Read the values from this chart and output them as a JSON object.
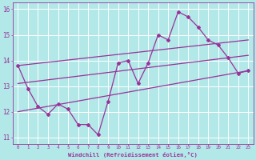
{
  "xlabel": "Windchill (Refroidissement éolien,°C)",
  "bg_color": "#b2e8e8",
  "grid_color": "#ffffff",
  "line_color": "#993399",
  "x_values": [
    0,
    1,
    2,
    3,
    4,
    5,
    6,
    7,
    8,
    9,
    10,
    11,
    12,
    13,
    14,
    15,
    16,
    17,
    18,
    19,
    20,
    21,
    22,
    23
  ],
  "main_y": [
    13.8,
    12.9,
    12.2,
    11.9,
    12.3,
    12.1,
    11.5,
    11.5,
    11.1,
    12.4,
    13.9,
    14.0,
    13.1,
    13.9,
    15.0,
    14.8,
    15.9,
    15.7,
    15.3,
    14.8,
    14.6,
    14.1,
    13.5,
    13.6
  ],
  "upper_line_x": [
    0,
    23
  ],
  "upper_line_y": [
    13.8,
    14.8
  ],
  "lower_line_x": [
    0,
    23
  ],
  "lower_line_y": [
    12.0,
    13.6
  ],
  "mid_line_x": [
    0,
    23
  ],
  "mid_line_y": [
    13.1,
    14.2
  ],
  "xlim": [
    -0.5,
    23.5
  ],
  "ylim": [
    10.75,
    16.25
  ],
  "yticks": [
    11,
    12,
    13,
    14,
    15,
    16
  ],
  "xticks": [
    0,
    1,
    2,
    3,
    4,
    5,
    6,
    7,
    8,
    9,
    10,
    11,
    12,
    13,
    14,
    15,
    16,
    17,
    18,
    19,
    20,
    21,
    22,
    23
  ],
  "xtick_labels": [
    "0",
    "1",
    "2",
    "3",
    "4",
    "5",
    "6",
    "7",
    "8",
    "9",
    "10",
    "11",
    "12",
    "13",
    "14",
    "15",
    "16",
    "17",
    "18",
    "19",
    "20",
    "21",
    "22",
    "23"
  ]
}
